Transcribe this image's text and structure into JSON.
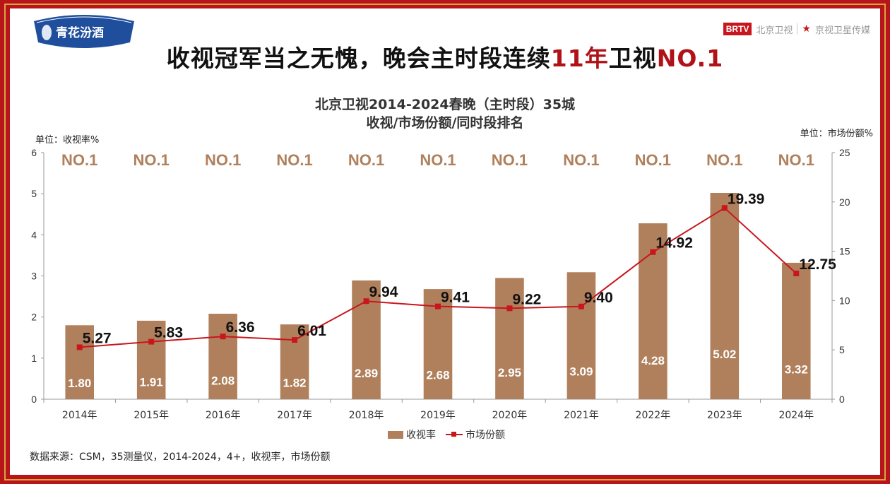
{
  "brand": {
    "logo_text": "青花汾酒",
    "channel_badge": "BRTV",
    "channel_name": "北京卫视",
    "slogan": "京视卫星传媒"
  },
  "headline": {
    "part1": "收视冠军当之无愧，晚会主时段连续",
    "part2": "11年",
    "part3": "卫视",
    "part4": "NO.1"
  },
  "chart_data": {
    "type": "bar",
    "title": "北京卫视2014-2024春晚（主时段）35城",
    "subtitle": "收视/市场份额/同时段排名",
    "unit_left": "单位：收视率%",
    "unit_right": "单位：市场份额%",
    "categories": [
      "2014年",
      "2015年",
      "2016年",
      "2017年",
      "2018年",
      "2019年",
      "2020年",
      "2021年",
      "2022年",
      "2023年",
      "2024年"
    ],
    "series": [
      {
        "name": "收视率",
        "type": "bar",
        "axis": "left",
        "color": "#b0805c",
        "values": [
          1.8,
          1.91,
          2.08,
          1.82,
          2.89,
          2.68,
          2.95,
          3.09,
          4.28,
          5.02,
          3.32
        ],
        "labels": [
          "1.80",
          "1.91",
          "2.08",
          "1.82",
          "2.89",
          "2.68",
          "2.95",
          "3.09",
          "4.28",
          "5.02",
          "3.32"
        ]
      },
      {
        "name": "市场份额",
        "type": "line",
        "axis": "right",
        "color": "#c8161d",
        "values": [
          5.27,
          5.83,
          6.36,
          6.01,
          9.94,
          9.41,
          9.22,
          9.4,
          14.92,
          19.39,
          12.75
        ],
        "labels": [
          "5.27",
          "5.83",
          "6.36",
          "6.01",
          "9.94",
          "9.41",
          "9.22",
          "9.40",
          "14.92",
          "19.39",
          "12.75"
        ]
      }
    ],
    "rank_labels": [
      "NO.1",
      "NO.1",
      "NO.1",
      "NO.1",
      "NO.1",
      "NO.1",
      "NO.1",
      "NO.1",
      "NO.1",
      "NO.1",
      "NO.1"
    ],
    "rank_color": "#b0805c",
    "ylim_left": [
      0,
      6
    ],
    "yticks_left": [
      0,
      1,
      2,
      3,
      4,
      5,
      6
    ],
    "ylim_right": [
      0,
      25
    ],
    "yticks_right": [
      0,
      5,
      10,
      15,
      20,
      25
    ],
    "legend_position": "bottom-center"
  },
  "source_note": "数据来源：CSM，35测量仪，2014-2024，4+，收视率，市场份额"
}
